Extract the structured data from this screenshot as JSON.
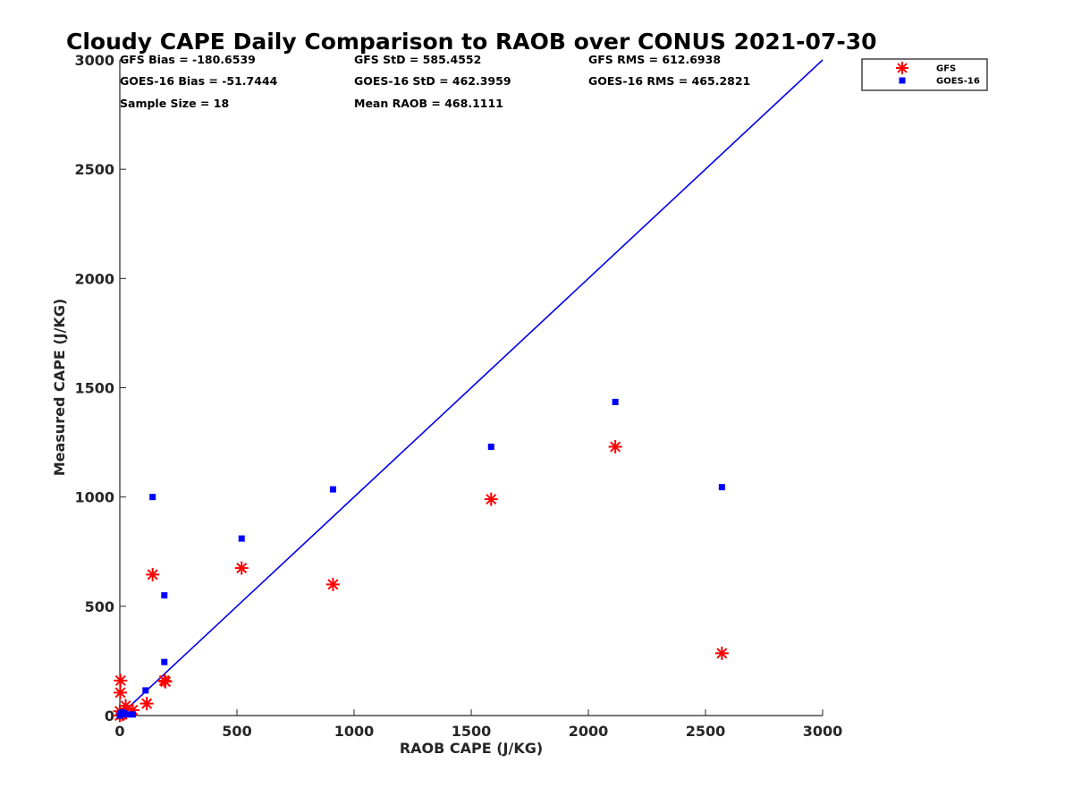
{
  "chart_data": {
    "type": "scatter",
    "title": "Cloudy CAPE Daily Comparison to RAOB over CONUS 2021-07-30",
    "xlabel": "RAOB CAPE (J/KG)",
    "ylabel": "Measured CAPE (J/KG)",
    "xlim": [
      0,
      3000
    ],
    "ylim": [
      0,
      3000
    ],
    "x_ticks": [
      0,
      500,
      1000,
      1500,
      2000,
      2500,
      3000
    ],
    "y_ticks": [
      0,
      500,
      1000,
      1500,
      2000,
      2500,
      3000
    ],
    "x_tick_labels": [
      "0",
      "500",
      "1000",
      "1500",
      "2000",
      "2500",
      "3000"
    ],
    "y_tick_labels": [
      "0",
      "500",
      "1000",
      "1500",
      "2000",
      "2500",
      "3000"
    ],
    "grid": false,
    "legend_position": "top-right",
    "reference_line": {
      "from": [
        0,
        0
      ],
      "to": [
        3000,
        3000
      ],
      "color": "#0000ee"
    },
    "stats": [
      {
        "label": "GFS Bias = -180.6539"
      },
      {
        "label": "GFS StD = 585.4552"
      },
      {
        "label": "GFS RMS = 612.6938"
      },
      {
        "label": "GOES-16 Bias = -51.7444"
      },
      {
        "label": "GOES-16 StD = 462.3959"
      },
      {
        "label": "GOES-16 RMS = 465.2821"
      },
      {
        "label": "Sample Size = 18"
      },
      {
        "label": "Mean RAOB = 468.1111"
      }
    ],
    "series": [
      {
        "name": "GFS",
        "marker": "asterisk",
        "color": "#ff0000",
        "points": [
          [
            0,
            0
          ],
          [
            0,
            20
          ],
          [
            2,
            105
          ],
          [
            3,
            160
          ],
          [
            10,
            5
          ],
          [
            20,
            15
          ],
          [
            25,
            45
          ],
          [
            55,
            25
          ],
          [
            115,
            55
          ],
          [
            140,
            645
          ],
          [
            190,
            160
          ],
          [
            195,
            155
          ],
          [
            520,
            675
          ],
          [
            910,
            600
          ],
          [
            1585,
            990
          ],
          [
            2115,
            1230
          ],
          [
            2570,
            285
          ]
        ]
      },
      {
        "name": "GOES-16",
        "marker": "square",
        "color": "#0000ff",
        "points": [
          [
            0,
            0
          ],
          [
            2,
            5
          ],
          [
            5,
            10
          ],
          [
            10,
            15
          ],
          [
            20,
            10
          ],
          [
            30,
            5
          ],
          [
            55,
            5
          ],
          [
            110,
            115
          ],
          [
            140,
            1000
          ],
          [
            190,
            550
          ],
          [
            190,
            245
          ],
          [
            520,
            810
          ],
          [
            910,
            1035
          ],
          [
            1585,
            1230
          ],
          [
            2115,
            1435
          ],
          [
            2570,
            1045
          ]
        ]
      }
    ]
  }
}
